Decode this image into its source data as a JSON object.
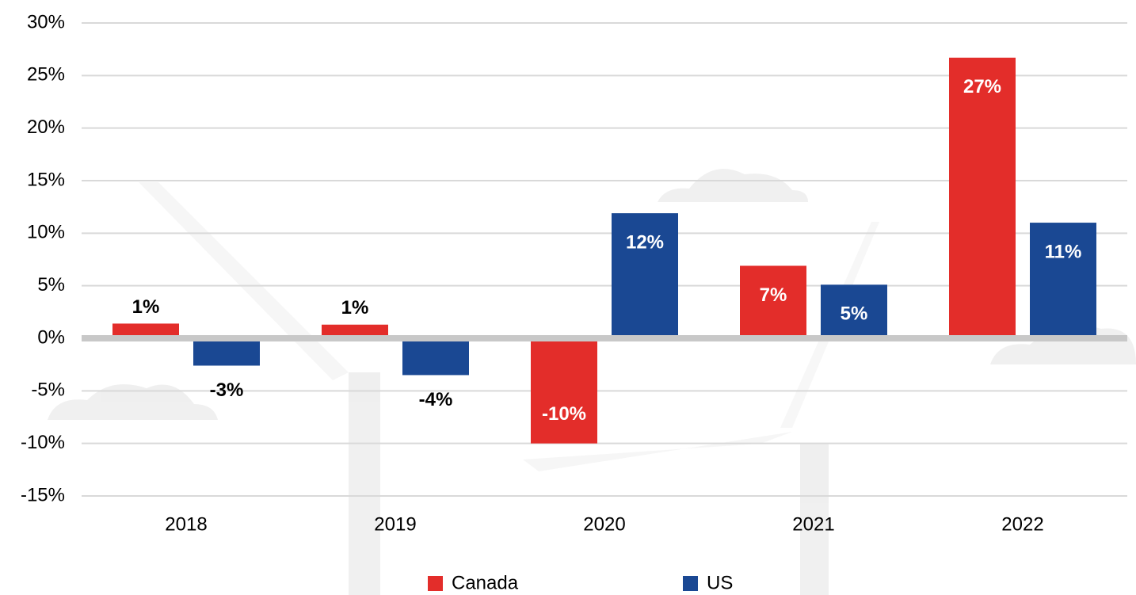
{
  "chart_data": {
    "type": "bar",
    "categories": [
      "2018",
      "2019",
      "2020",
      "2021",
      "2022"
    ],
    "series": [
      {
        "name": "Canada",
        "color": "#e32d2a",
        "values": [
          1.4,
          1.3,
          -10.0,
          6.9,
          26.7
        ],
        "value_labels": [
          "1%",
          "1%",
          "-10%",
          "7%",
          "27%"
        ]
      },
      {
        "name": "US",
        "color": "#1a4893",
        "values": [
          -2.6,
          -3.5,
          11.9,
          5.1,
          11.0
        ],
        "value_labels": [
          "-3%",
          "-4%",
          "12%",
          "5%",
          "11%"
        ]
      }
    ],
    "ylim": [
      -15,
      30
    ],
    "yticks": [
      {
        "value": -15,
        "label": "-15%"
      },
      {
        "value": -10,
        "label": "-10%"
      },
      {
        "value": -5,
        "label": "-5%"
      },
      {
        "value": 0,
        "label": "0%"
      },
      {
        "value": 5,
        "label": "5%"
      },
      {
        "value": 10,
        "label": "10%"
      },
      {
        "value": 15,
        "label": "15%"
      },
      {
        "value": 20,
        "label": "20%"
      },
      {
        "value": 25,
        "label": "25%"
      },
      {
        "value": 30,
        "label": "30%"
      }
    ],
    "grid": true,
    "legend": "bottom"
  }
}
